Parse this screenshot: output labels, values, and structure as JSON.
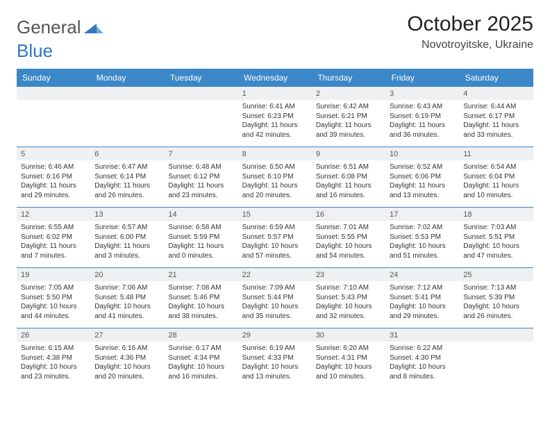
{
  "brand": {
    "part1": "General",
    "part2": "Blue"
  },
  "title": "October 2025",
  "location": "Novotroyitske, Ukraine",
  "colors": {
    "header_bg": "#3b87c8",
    "header_text": "#ffffff",
    "daynum_bg": "#eef0f1",
    "border": "#3b87c8",
    "body_text": "#333333",
    "brand_gray": "#555555",
    "brand_blue": "#2f78c4",
    "page_bg": "#ffffff"
  },
  "dow": [
    "Sunday",
    "Monday",
    "Tuesday",
    "Wednesday",
    "Thursday",
    "Friday",
    "Saturday"
  ],
  "weeks": [
    [
      null,
      null,
      null,
      {
        "n": "1",
        "sr": "6:41 AM",
        "ss": "6:23 PM",
        "dl": "11 hours and 42 minutes."
      },
      {
        "n": "2",
        "sr": "6:42 AM",
        "ss": "6:21 PM",
        "dl": "11 hours and 39 minutes."
      },
      {
        "n": "3",
        "sr": "6:43 AM",
        "ss": "6:19 PM",
        "dl": "11 hours and 36 minutes."
      },
      {
        "n": "4",
        "sr": "6:44 AM",
        "ss": "6:17 PM",
        "dl": "11 hours and 33 minutes."
      }
    ],
    [
      {
        "n": "5",
        "sr": "6:46 AM",
        "ss": "6:16 PM",
        "dl": "11 hours and 29 minutes."
      },
      {
        "n": "6",
        "sr": "6:47 AM",
        "ss": "6:14 PM",
        "dl": "11 hours and 26 minutes."
      },
      {
        "n": "7",
        "sr": "6:48 AM",
        "ss": "6:12 PM",
        "dl": "11 hours and 23 minutes."
      },
      {
        "n": "8",
        "sr": "6:50 AM",
        "ss": "6:10 PM",
        "dl": "11 hours and 20 minutes."
      },
      {
        "n": "9",
        "sr": "6:51 AM",
        "ss": "6:08 PM",
        "dl": "11 hours and 16 minutes."
      },
      {
        "n": "10",
        "sr": "6:52 AM",
        "ss": "6:06 PM",
        "dl": "11 hours and 13 minutes."
      },
      {
        "n": "11",
        "sr": "6:54 AM",
        "ss": "6:04 PM",
        "dl": "11 hours and 10 minutes."
      }
    ],
    [
      {
        "n": "12",
        "sr": "6:55 AM",
        "ss": "6:02 PM",
        "dl": "11 hours and 7 minutes."
      },
      {
        "n": "13",
        "sr": "6:57 AM",
        "ss": "6:00 PM",
        "dl": "11 hours and 3 minutes."
      },
      {
        "n": "14",
        "sr": "6:58 AM",
        "ss": "5:59 PM",
        "dl": "11 hours and 0 minutes."
      },
      {
        "n": "15",
        "sr": "6:59 AM",
        "ss": "5:57 PM",
        "dl": "10 hours and 57 minutes."
      },
      {
        "n": "16",
        "sr": "7:01 AM",
        "ss": "5:55 PM",
        "dl": "10 hours and 54 minutes."
      },
      {
        "n": "17",
        "sr": "7:02 AM",
        "ss": "5:53 PM",
        "dl": "10 hours and 51 minutes."
      },
      {
        "n": "18",
        "sr": "7:03 AM",
        "ss": "5:51 PM",
        "dl": "10 hours and 47 minutes."
      }
    ],
    [
      {
        "n": "19",
        "sr": "7:05 AM",
        "ss": "5:50 PM",
        "dl": "10 hours and 44 minutes."
      },
      {
        "n": "20",
        "sr": "7:06 AM",
        "ss": "5:48 PM",
        "dl": "10 hours and 41 minutes."
      },
      {
        "n": "21",
        "sr": "7:08 AM",
        "ss": "5:46 PM",
        "dl": "10 hours and 38 minutes."
      },
      {
        "n": "22",
        "sr": "7:09 AM",
        "ss": "5:44 PM",
        "dl": "10 hours and 35 minutes."
      },
      {
        "n": "23",
        "sr": "7:10 AM",
        "ss": "5:43 PM",
        "dl": "10 hours and 32 minutes."
      },
      {
        "n": "24",
        "sr": "7:12 AM",
        "ss": "5:41 PM",
        "dl": "10 hours and 29 minutes."
      },
      {
        "n": "25",
        "sr": "7:13 AM",
        "ss": "5:39 PM",
        "dl": "10 hours and 26 minutes."
      }
    ],
    [
      {
        "n": "26",
        "sr": "6:15 AM",
        "ss": "4:38 PM",
        "dl": "10 hours and 23 minutes."
      },
      {
        "n": "27",
        "sr": "6:16 AM",
        "ss": "4:36 PM",
        "dl": "10 hours and 20 minutes."
      },
      {
        "n": "28",
        "sr": "6:17 AM",
        "ss": "4:34 PM",
        "dl": "10 hours and 16 minutes."
      },
      {
        "n": "29",
        "sr": "6:19 AM",
        "ss": "4:33 PM",
        "dl": "10 hours and 13 minutes."
      },
      {
        "n": "30",
        "sr": "6:20 AM",
        "ss": "4:31 PM",
        "dl": "10 hours and 10 minutes."
      },
      {
        "n": "31",
        "sr": "6:22 AM",
        "ss": "4:30 PM",
        "dl": "10 hours and 8 minutes."
      },
      null
    ]
  ],
  "labels": {
    "sunrise": "Sunrise: ",
    "sunset": "Sunset: ",
    "daylight": "Daylight: "
  }
}
